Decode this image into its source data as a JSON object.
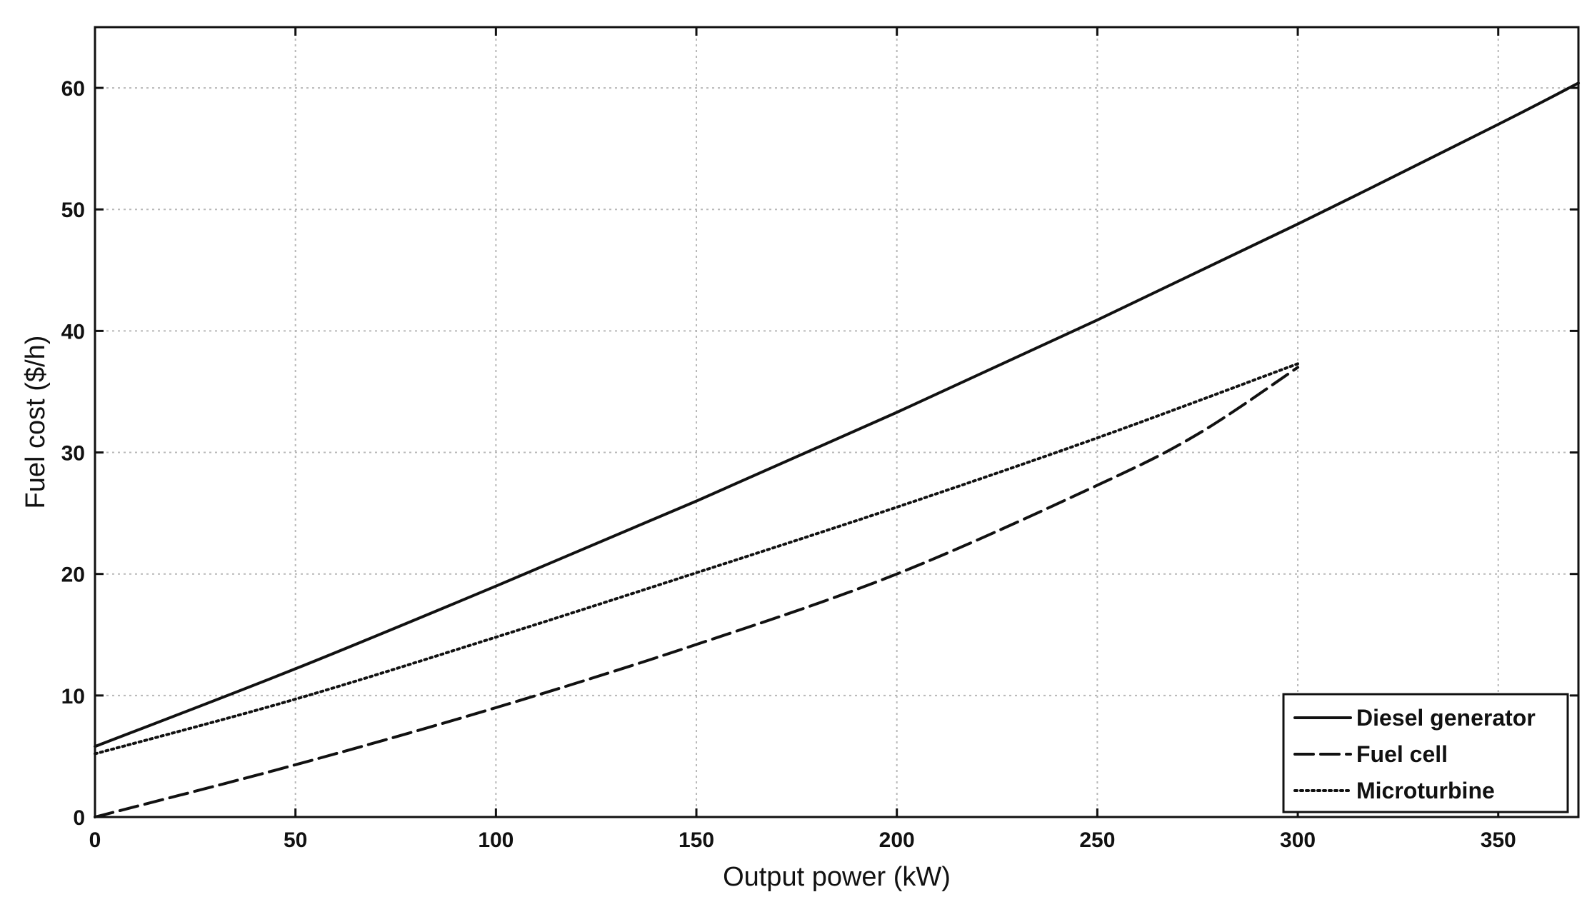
{
  "chart_data": {
    "type": "line",
    "title": "",
    "xlabel": "Output power (kW)",
    "ylabel": "Fuel cost ($/h)",
    "xlim": [
      0,
      370
    ],
    "ylim": [
      0,
      65
    ],
    "xticks": [
      0,
      50,
      100,
      150,
      200,
      250,
      300,
      350
    ],
    "yticks": [
      0,
      10,
      20,
      30,
      40,
      50,
      60
    ],
    "grid": true,
    "legend_position": "bottom-right",
    "series": [
      {
        "name": "Diesel generator",
        "style": "solid",
        "x": [
          0,
          50,
          100,
          150,
          200,
          250,
          300,
          350,
          370
        ],
        "y": [
          5.8,
          12.2,
          19,
          26,
          33.3,
          40.9,
          48.8,
          57,
          60.4
        ]
      },
      {
        "name": "Fuel cell",
        "style": "dashed",
        "x": [
          0,
          50,
          100,
          150,
          200,
          250,
          275,
          300
        ],
        "y": [
          0,
          4.3,
          9,
          14.2,
          20,
          27.3,
          31.5,
          37
        ]
      },
      {
        "name": "Microturbine",
        "style": "dotted",
        "x": [
          0,
          50,
          100,
          150,
          200,
          250,
          300
        ],
        "y": [
          5.2,
          9.7,
          14.8,
          20.1,
          25.5,
          31.2,
          37.3
        ]
      }
    ]
  }
}
